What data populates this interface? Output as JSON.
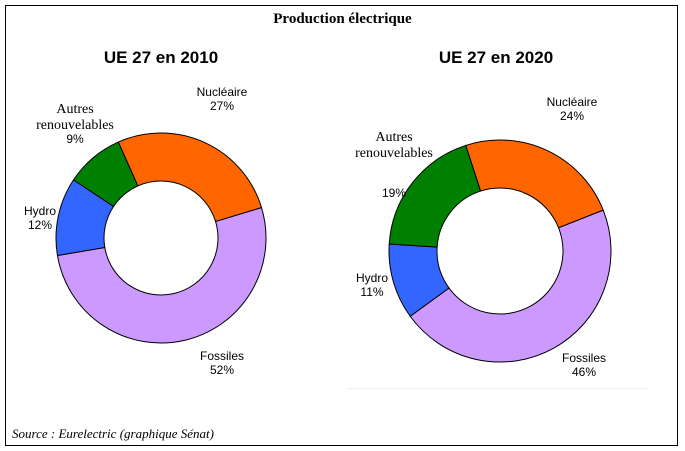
{
  "title": "Production électrique",
  "source": "Source : Eurelectric (graphique Sénat)",
  "chart_data": [
    {
      "type": "pie",
      "title": "UE 27 en 2010",
      "categories": [
        "Nucléaire",
        "Fossiles",
        "Hydro",
        "Autres renouvelables"
      ],
      "values": [
        27,
        52,
        12,
        9
      ],
      "labels": [
        "27%",
        "52%",
        "12%",
        "9%"
      ],
      "colors": [
        "#ff6600",
        "#cc99ff",
        "#3366ff",
        "#008000"
      ]
    },
    {
      "type": "pie",
      "title": "UE 27 en 2020",
      "categories": [
        "Nucléaire",
        "Fossiles",
        "Hydro",
        "Autres renouvelables"
      ],
      "values": [
        24,
        46,
        11,
        19
      ],
      "labels": [
        "24%",
        "46%",
        "11%",
        "19%"
      ],
      "colors": [
        "#ff6600",
        "#cc99ff",
        "#3366ff",
        "#008000"
      ]
    }
  ]
}
